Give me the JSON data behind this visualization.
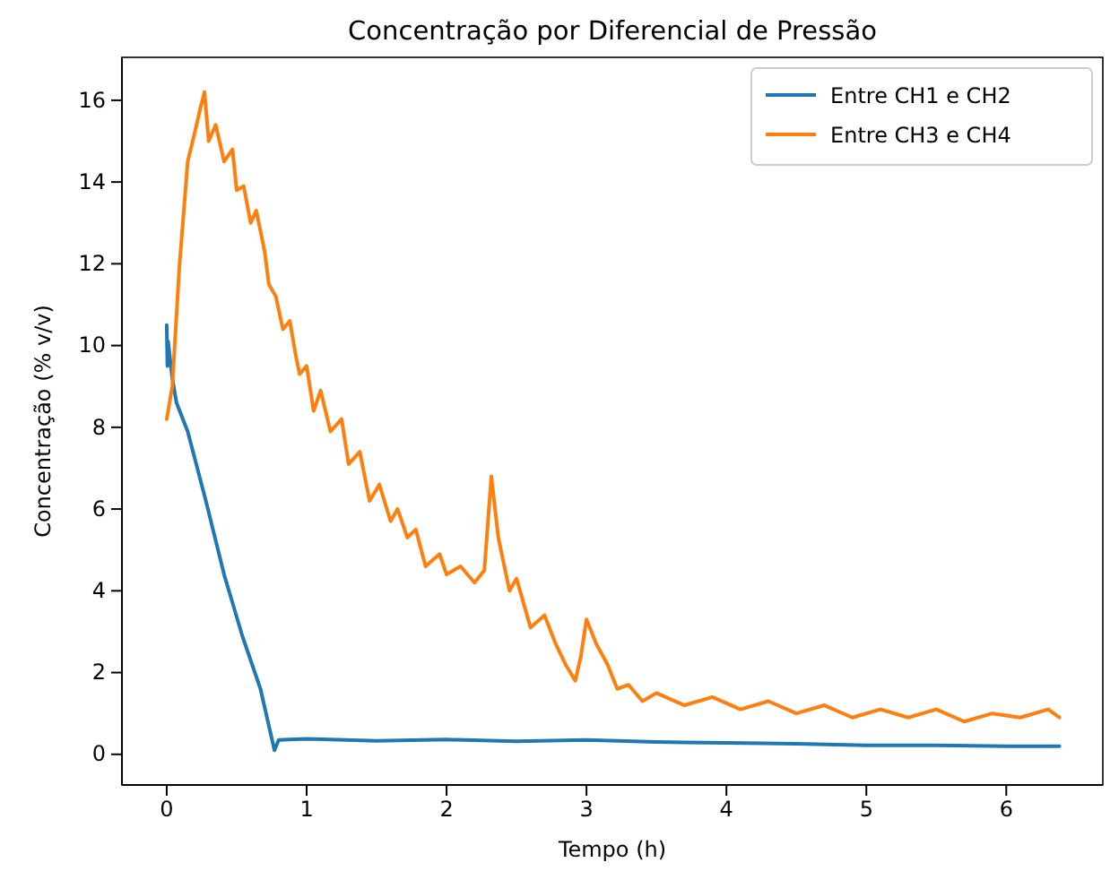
{
  "chart_data": {
    "type": "line",
    "title": "Concentração por Diferencial de Pressão",
    "xlabel": "Tempo (h)",
    "ylabel": "Concentração (% v/v)",
    "xlim": [
      -0.32,
      6.69
    ],
    "ylim": [
      -0.75,
      17.05
    ],
    "xticks": [
      0,
      1,
      2,
      3,
      4,
      5,
      6
    ],
    "yticks": [
      0,
      2,
      4,
      6,
      8,
      10,
      12,
      14,
      16
    ],
    "grid": false,
    "legend": "top right",
    "marker": "none",
    "line_style": "solid",
    "series": [
      {
        "name": "Entre CH1 e CH2",
        "color": "#1f77b4",
        "x": [
          0,
          0.005,
          0.01,
          0.04,
          0.07,
          0.15,
          0.28,
          0.41,
          0.54,
          0.67,
          0.77,
          0.8,
          1,
          1.5,
          2,
          2.5,
          3,
          3.5,
          4,
          4.5,
          5,
          5.5,
          6,
          6.38
        ],
        "values": [
          10.5,
          9.5,
          10.1,
          9.2,
          8.6,
          7.9,
          6.2,
          4.4,
          2.9,
          1.6,
          0.1,
          0.35,
          0.38,
          0.33,
          0.36,
          0.32,
          0.35,
          0.3,
          0.28,
          0.26,
          0.22,
          0.22,
          0.2,
          0.2
        ]
      },
      {
        "name": "Entre CH3 e CH4",
        "color": "#ff7f0e",
        "x": [
          0,
          0.04,
          0.09,
          0.15,
          0.2,
          0.24,
          0.27,
          0.3,
          0.35,
          0.41,
          0.47,
          0.5,
          0.55,
          0.6,
          0.64,
          0.7,
          0.73,
          0.78,
          0.83,
          0.88,
          0.92,
          0.95,
          1.0,
          1.05,
          1.1,
          1.17,
          1.25,
          1.3,
          1.38,
          1.45,
          1.52,
          1.6,
          1.65,
          1.72,
          1.78,
          1.85,
          1.95,
          2.0,
          2.1,
          2.2,
          2.27,
          2.32,
          2.37,
          2.45,
          2.5,
          2.6,
          2.7,
          2.78,
          2.85,
          2.92,
          2.96,
          3.0,
          3.07,
          3.15,
          3.22,
          3.3,
          3.4,
          3.5,
          3.7,
          3.9,
          4.1,
          4.3,
          4.5,
          4.7,
          4.9,
          5.1,
          5.3,
          5.5,
          5.7,
          5.9,
          6.1,
          6.3,
          6.38
        ],
        "values": [
          8.2,
          9.0,
          11.9,
          14.5,
          15.2,
          15.8,
          16.2,
          15.0,
          15.4,
          14.5,
          14.8,
          13.8,
          13.9,
          13.0,
          13.3,
          12.3,
          11.5,
          11.2,
          10.4,
          10.6,
          9.8,
          9.3,
          9.5,
          8.4,
          8.9,
          7.9,
          8.2,
          7.1,
          7.4,
          6.2,
          6.6,
          5.7,
          6.0,
          5.3,
          5.5,
          4.6,
          4.9,
          4.4,
          4.6,
          4.2,
          4.5,
          6.8,
          5.3,
          4.0,
          4.3,
          3.1,
          3.4,
          2.7,
          2.2,
          1.8,
          2.4,
          3.3,
          2.7,
          2.2,
          1.6,
          1.7,
          1.3,
          1.5,
          1.2,
          1.4,
          1.1,
          1.3,
          1.0,
          1.2,
          0.9,
          1.1,
          0.9,
          1.1,
          0.8,
          1.0,
          0.9,
          1.1,
          0.9
        ]
      }
    ]
  }
}
